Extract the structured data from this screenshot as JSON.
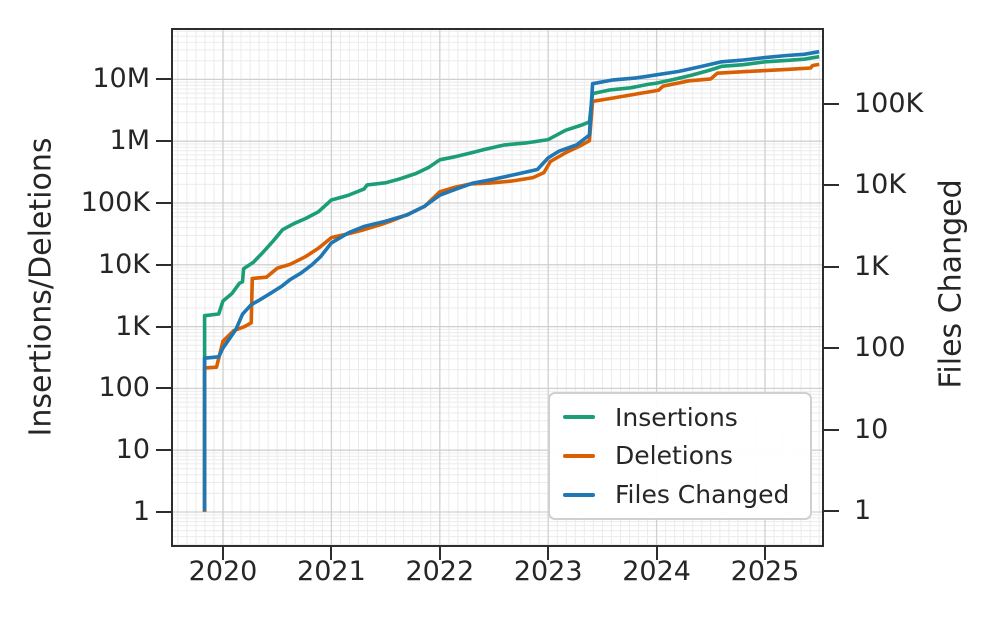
{
  "chart_data": {
    "type": "line",
    "title": "",
    "x_axis": {
      "ticks": [
        2020,
        2021,
        2022,
        2023,
        2024,
        2025
      ],
      "tick_labels": [
        "2020",
        "2021",
        "2022",
        "2023",
        "2024",
        "2025"
      ],
      "range": [
        2019.54,
        2025.52
      ],
      "minor_grid_interval_years": 0.0833
    },
    "left_y_axis": {
      "label": "Insertions/Deletions",
      "scale": "log",
      "tick_values": [
        1,
        10,
        100,
        1000,
        10000,
        100000,
        1000000,
        10000000
      ],
      "tick_labels": [
        "1",
        "10",
        "100",
        "1K",
        "10K",
        "100K",
        "1M",
        "10M"
      ],
      "range": [
        0.3,
        70000000
      ]
    },
    "right_y_axis": {
      "label": "Files Changed",
      "scale": "log",
      "tick_values": [
        1,
        10,
        100,
        1000,
        10000,
        100000
      ],
      "tick_labels": [
        "1",
        "10",
        "100",
        "1K",
        "10K",
        "100K"
      ],
      "range": [
        0.55,
        800000
      ]
    },
    "grid": "major+minor",
    "legend": {
      "position": "lower-right-inside",
      "entries": [
        "Insertions",
        "Deletions",
        "Files Changed"
      ]
    },
    "series": [
      {
        "name": "Insertions",
        "color": "#1b9e77",
        "axis": "left",
        "points": [
          [
            2019.83,
            1
          ],
          [
            2019.83,
            1500
          ],
          [
            2019.96,
            1600
          ],
          [
            2020.0,
            2600
          ],
          [
            2020.08,
            3400
          ],
          [
            2020.15,
            5000
          ],
          [
            2020.18,
            5300
          ],
          [
            2020.19,
            8600
          ],
          [
            2020.28,
            11000
          ],
          [
            2020.37,
            16000
          ],
          [
            2020.46,
            24000
          ],
          [
            2020.55,
            37000
          ],
          [
            2020.66,
            47000
          ],
          [
            2020.76,
            56000
          ],
          [
            2020.88,
            72000
          ],
          [
            2021.0,
            112000
          ],
          [
            2021.15,
            132000
          ],
          [
            2021.3,
            168000
          ],
          [
            2021.33,
            196000
          ],
          [
            2021.5,
            212000
          ],
          [
            2021.64,
            248000
          ],
          [
            2021.78,
            300000
          ],
          [
            2021.9,
            380000
          ],
          [
            2022.0,
            500000
          ],
          [
            2022.12,
            550000
          ],
          [
            2022.26,
            630000
          ],
          [
            2022.42,
            740000
          ],
          [
            2022.6,
            870000
          ],
          [
            2022.8,
            940000
          ],
          [
            2023.0,
            1060000
          ],
          [
            2023.16,
            1500000
          ],
          [
            2023.3,
            1800000
          ],
          [
            2023.38,
            2050000
          ],
          [
            2023.41,
            5900000
          ],
          [
            2023.56,
            6700000
          ],
          [
            2023.76,
            7300000
          ],
          [
            2023.92,
            8300000
          ],
          [
            2024.0,
            8700000
          ],
          [
            2024.16,
            10000000
          ],
          [
            2024.32,
            11700000
          ],
          [
            2024.46,
            13600000
          ],
          [
            2024.54,
            15000000
          ],
          [
            2024.6,
            16300000
          ],
          [
            2024.8,
            17300000
          ],
          [
            2025.0,
            19300000
          ],
          [
            2025.2,
            20300000
          ],
          [
            2025.36,
            21200000
          ],
          [
            2025.5,
            23300000
          ]
        ]
      },
      {
        "name": "Deletions",
        "color": "#d95f02",
        "axis": "left",
        "points": [
          [
            2019.83,
            1
          ],
          [
            2019.83,
            215
          ],
          [
            2019.94,
            220
          ],
          [
            2020.0,
            580
          ],
          [
            2020.1,
            860
          ],
          [
            2020.2,
            1000
          ],
          [
            2020.26,
            1150
          ],
          [
            2020.27,
            6000
          ],
          [
            2020.4,
            6300
          ],
          [
            2020.5,
            8800
          ],
          [
            2020.62,
            10200
          ],
          [
            2020.76,
            13500
          ],
          [
            2020.88,
            18500
          ],
          [
            2021.0,
            27500
          ],
          [
            2021.16,
            32000
          ],
          [
            2021.3,
            37000
          ],
          [
            2021.46,
            45000
          ],
          [
            2021.56,
            52000
          ],
          [
            2021.7,
            65000
          ],
          [
            2021.86,
            88000
          ],
          [
            2022.0,
            152000
          ],
          [
            2022.14,
            180000
          ],
          [
            2022.28,
            203000
          ],
          [
            2022.46,
            210000
          ],
          [
            2022.66,
            226000
          ],
          [
            2022.86,
            258000
          ],
          [
            2022.96,
            310000
          ],
          [
            2023.02,
            470000
          ],
          [
            2023.16,
            650000
          ],
          [
            2023.3,
            850000
          ],
          [
            2023.38,
            1020000
          ],
          [
            2023.41,
            4400000
          ],
          [
            2023.6,
            5000000
          ],
          [
            2023.86,
            6000000
          ],
          [
            2023.96,
            6400000
          ],
          [
            2024.02,
            6700000
          ],
          [
            2024.06,
            7800000
          ],
          [
            2024.3,
            9500000
          ],
          [
            2024.5,
            10200000
          ],
          [
            2024.56,
            12600000
          ],
          [
            2024.8,
            13300000
          ],
          [
            2025.0,
            13900000
          ],
          [
            2025.2,
            14500000
          ],
          [
            2025.42,
            15300000
          ],
          [
            2025.44,
            16800000
          ],
          [
            2025.5,
            17500000
          ]
        ]
      },
      {
        "name": "Files Changed",
        "color": "#1f77b4",
        "axis": "right",
        "points": [
          [
            2019.83,
            1
          ],
          [
            2019.83,
            75
          ],
          [
            2019.96,
            78
          ],
          [
            2020.0,
            100
          ],
          [
            2020.06,
            130
          ],
          [
            2020.12,
            170
          ],
          [
            2020.18,
            260
          ],
          [
            2020.26,
            340
          ],
          [
            2020.34,
            390
          ],
          [
            2020.44,
            470
          ],
          [
            2020.54,
            570
          ],
          [
            2020.62,
            690
          ],
          [
            2020.72,
            830
          ],
          [
            2020.82,
            1050
          ],
          [
            2020.9,
            1320
          ],
          [
            2021.0,
            1950
          ],
          [
            2021.16,
            2600
          ],
          [
            2021.3,
            3100
          ],
          [
            2021.5,
            3600
          ],
          [
            2021.7,
            4300
          ],
          [
            2021.86,
            5500
          ],
          [
            2022.0,
            7500
          ],
          [
            2022.16,
            9000
          ],
          [
            2022.3,
            10500
          ],
          [
            2022.5,
            11800
          ],
          [
            2022.7,
            13500
          ],
          [
            2022.9,
            15500
          ],
          [
            2023.0,
            21500
          ],
          [
            2023.1,
            26000
          ],
          [
            2023.26,
            31000
          ],
          [
            2023.38,
            41000
          ],
          [
            2023.41,
            175000
          ],
          [
            2023.6,
            195000
          ],
          [
            2023.8,
            205000
          ],
          [
            2023.92,
            216000
          ],
          [
            2024.0,
            225000
          ],
          [
            2024.2,
            247000
          ],
          [
            2024.4,
            283000
          ],
          [
            2024.6,
            325000
          ],
          [
            2024.8,
            342000
          ],
          [
            2025.0,
            366000
          ],
          [
            2025.2,
            388000
          ],
          [
            2025.36,
            402000
          ],
          [
            2025.5,
            432000
          ]
        ]
      }
    ]
  },
  "colors": {
    "background": "#ffffff",
    "spine": "#2d2d2d",
    "text": "#262626",
    "grid_major": "#d0d0d0",
    "grid_minor": "#ebebeb",
    "legend_border": "#d0d0d0"
  }
}
